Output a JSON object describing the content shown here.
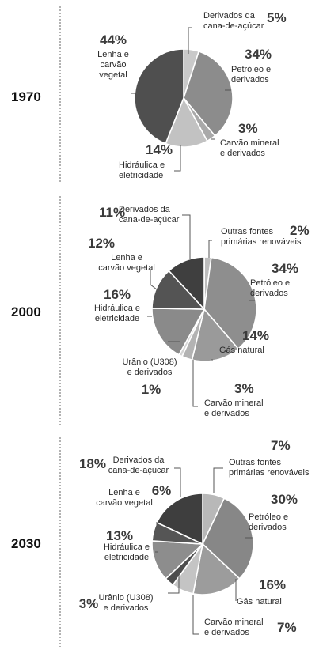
{
  "chart_data": [
    {
      "type": "pie",
      "year": "1970",
      "slices": [
        {
          "label": "Derivados da\ncana-de-açúcar",
          "pct_text": "5%",
          "value": 5,
          "color": "#c9c9c9"
        },
        {
          "label": "Petróleo e\nderivados",
          "pct_text": "34%",
          "value": 34,
          "color": "#8c8c8c"
        },
        {
          "label": "Carvão mineral\ne derivados",
          "pct_text": "3%",
          "value": 3,
          "color": "#a9a9a9"
        },
        {
          "label": "Hidráulica e\neletricidade",
          "pct_text": "14%",
          "value": 14,
          "color": "#c2c2c2"
        },
        {
          "label": "Lenha e\ncarvão\nvegetal",
          "pct_text": "44%",
          "value": 44,
          "color": "#4f4f4f"
        }
      ]
    },
    {
      "type": "pie",
      "year": "2000",
      "slices": [
        {
          "label": "Outras fontes\nprimárias renováveis",
          "pct_text": "2%",
          "value": 2,
          "color": "#bdbdbd"
        },
        {
          "label": "Petróleo e\nderivados",
          "pct_text": "34%",
          "value": 34,
          "color": "#8e8e8e"
        },
        {
          "label": "Gás natural",
          "pct_text": "14%",
          "value": 14,
          "color": "#9a9a9a"
        },
        {
          "label": "Carvão mineral\ne derivados",
          "pct_text": "3%",
          "value": 3,
          "color": "#b3b3b3"
        },
        {
          "label": "Urânio (U308)\ne derivados",
          "pct_text": "1%",
          "value": 1,
          "color": "#d4d4d4"
        },
        {
          "label": "Hidráulica e\neletricidade",
          "pct_text": "16%",
          "value": 16,
          "color": "#8a8a8a"
        },
        {
          "label": "Lenha e\ncarvão vegetal",
          "pct_text": "12%",
          "value": 12,
          "color": "#545454"
        },
        {
          "label": "Derivados da\ncana-de-açúcar",
          "pct_text": "11%",
          "value": 11,
          "color": "#3f3f3f"
        }
      ]
    },
    {
      "type": "pie",
      "year": "2030",
      "slices": [
        {
          "label": "Outras fontes\nprimárias renováveis",
          "pct_text": "7%",
          "value": 7,
          "color": "#b8b8b8"
        },
        {
          "label": "Petróleo e\nderivados",
          "pct_text": "30%",
          "value": 30,
          "color": "#878787"
        },
        {
          "label": "Gás natural",
          "pct_text": "16%",
          "value": 16,
          "color": "#9c9c9c"
        },
        {
          "label": "Carvão mineral\ne derivados",
          "pct_text": "7%",
          "value": 7,
          "color": "#c4c4c4"
        },
        {
          "label": "Urânio (U308)\ne derivados",
          "pct_text": "3%",
          "value": 3,
          "color": "#4d4d4d"
        },
        {
          "label": "Hidráulica e\neletricidade",
          "pct_text": "13%",
          "value": 13,
          "color": "#8d8d8d"
        },
        {
          "label": "Lenha e\ncarvão vegetal",
          "pct_text": "6%",
          "value": 6,
          "color": "#555555"
        },
        {
          "label": "Derivados da\ncana-de-açúcar",
          "pct_text": "18%",
          "value": 18,
          "color": "#3e3e3e"
        }
      ]
    }
  ]
}
